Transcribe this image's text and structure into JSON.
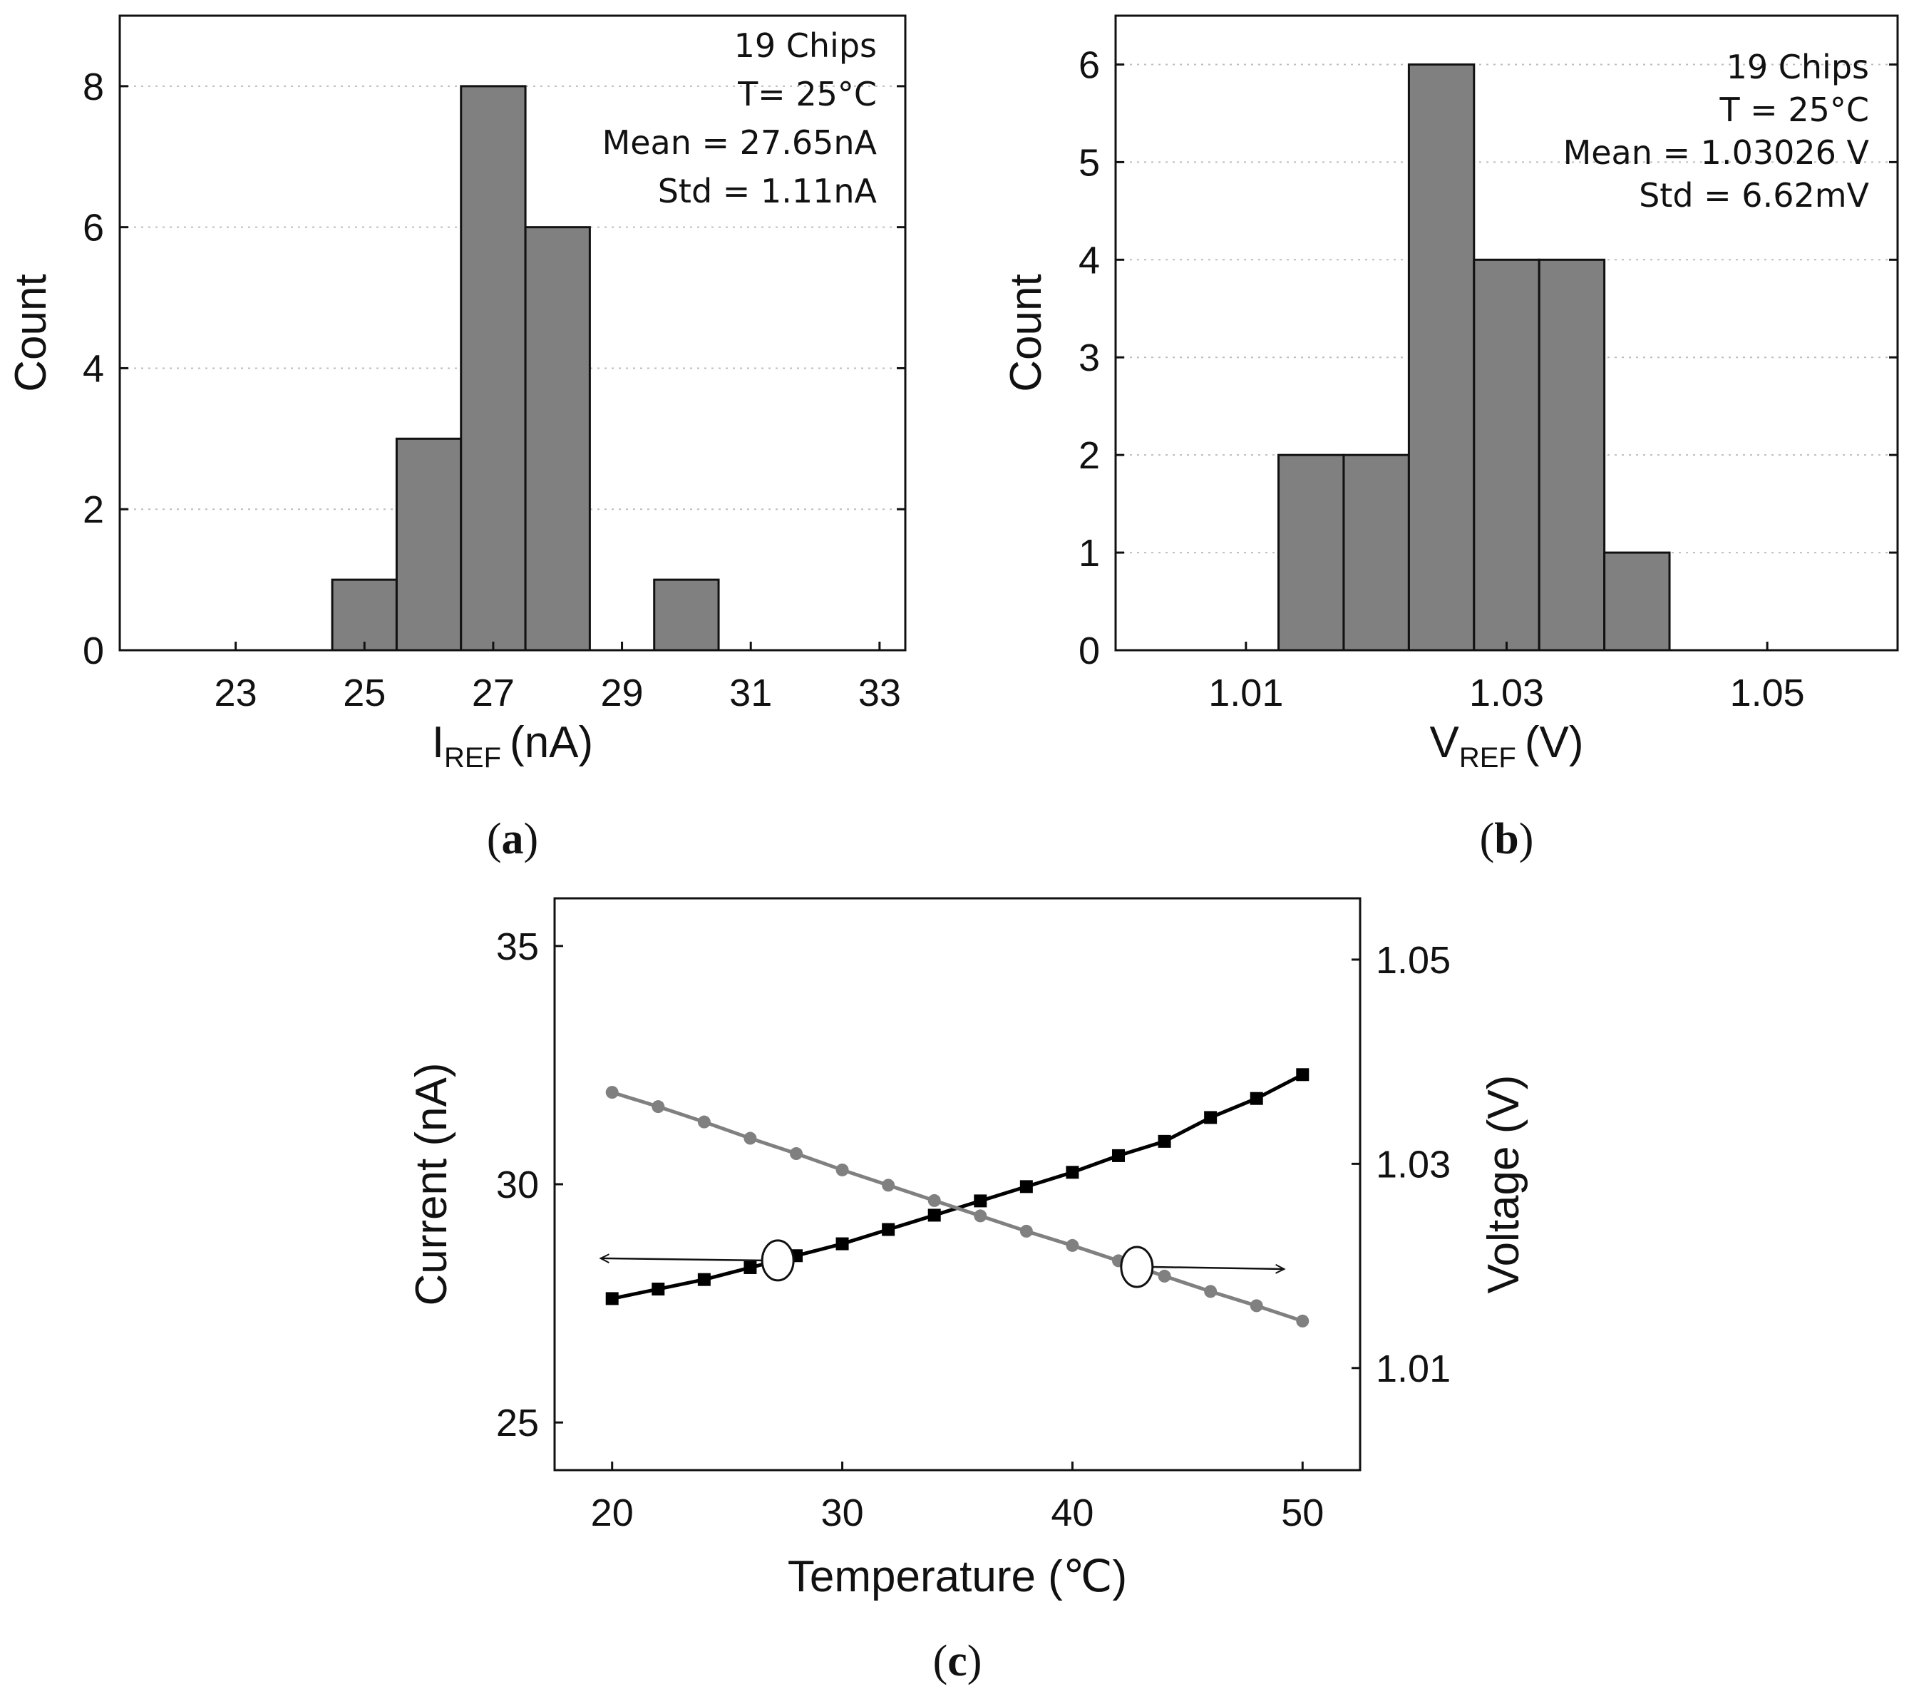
{
  "chart_data": [
    {
      "panel": "a",
      "type": "bar",
      "title": "",
      "xlabel": {
        "main": "I",
        "sub": "REF",
        "unit": "(nA)"
      },
      "ylabel": "Count",
      "xlim": [
        21.2,
        33.4
      ],
      "ylim": [
        0,
        9
      ],
      "xticks": [
        23,
        25,
        27,
        29,
        31,
        33
      ],
      "xtick_labels": [
        "23",
        "25",
        "27",
        "29",
        "31",
        "33"
      ],
      "yticks": [
        0,
        2,
        4,
        6,
        8
      ],
      "ytick_labels": [
        "0",
        "2",
        "4",
        "6",
        "8"
      ],
      "grid": true,
      "bin_width": 1,
      "bins": [
        {
          "center": 25,
          "count": 1
        },
        {
          "center": 26,
          "count": 3
        },
        {
          "center": 27,
          "count": 8
        },
        {
          "center": 28,
          "count": 6
        },
        {
          "center": 30,
          "count": 1
        }
      ],
      "annotations": [
        "19 Chips",
        "T= 25°C",
        "Mean = 27.65nA",
        "Std = 1.11nA"
      ],
      "annotation_position": "top-right",
      "bar_color": "#808080",
      "label": {
        "open": "(",
        "letter": "a",
        "close": ")"
      }
    },
    {
      "panel": "b",
      "type": "bar",
      "title": "",
      "xlabel": {
        "main": "V",
        "sub": "REF",
        "unit": "(V)"
      },
      "ylabel": "Count",
      "xlim": [
        1.0,
        1.06
      ],
      "ylim": [
        0,
        6.5
      ],
      "xticks": [
        1.01,
        1.03,
        1.05
      ],
      "xtick_labels": [
        "1.01",
        "1.03",
        "1.05"
      ],
      "yticks": [
        0,
        1,
        2,
        3,
        4,
        5,
        6
      ],
      "ytick_labels": [
        "0",
        "1",
        "2",
        "3",
        "4",
        "5",
        "6"
      ],
      "grid": true,
      "bin_width": 0.005,
      "bins": [
        {
          "center": 1.015,
          "count": 2
        },
        {
          "center": 1.02,
          "count": 2
        },
        {
          "center": 1.025,
          "count": 6
        },
        {
          "center": 1.03,
          "count": 4
        },
        {
          "center": 1.035,
          "count": 4
        },
        {
          "center": 1.04,
          "count": 1
        }
      ],
      "annotations": [
        "19 Chips",
        "T = 25°C",
        "Mean = 1.03026 V",
        "Std = 6.62mV"
      ],
      "annotation_position": "top-right",
      "bar_color": "#808080",
      "label": {
        "open": "(",
        "letter": "b",
        "close": ")"
      }
    },
    {
      "panel": "c",
      "type": "line",
      "title": "",
      "xlabel": "Temperature (℃)",
      "ylabel_left": "Current (nA)",
      "ylabel_right": "Voltage (V)",
      "xlim": [
        17.5,
        52.5
      ],
      "ylim_left": [
        24,
        36
      ],
      "ylim_right": [
        1.0,
        1.056
      ],
      "xticks": [
        20,
        30,
        40,
        50
      ],
      "xtick_labels": [
        "20",
        "30",
        "40",
        "50"
      ],
      "yticks_left": [
        25,
        30,
        35
      ],
      "ytick_labels_left": [
        "25",
        "30",
        "35"
      ],
      "yticks_right": [
        1.01,
        1.03,
        1.05
      ],
      "ytick_labels_right": [
        "1.01",
        "1.03",
        "1.05"
      ],
      "grid": false,
      "x": [
        20,
        22,
        24,
        26,
        28,
        30,
        32,
        34,
        36,
        38,
        40,
        42,
        44,
        46,
        48,
        50
      ],
      "series": [
        {
          "name": "Current",
          "axis": "left",
          "marker": "square",
          "color": "#000000",
          "values": [
            27.6,
            27.8,
            28.0,
            28.25,
            28.5,
            28.75,
            29.05,
            29.35,
            29.65,
            29.95,
            30.25,
            30.6,
            30.9,
            31.4,
            31.8,
            32.3
          ]
        },
        {
          "name": "Voltage",
          "axis": "right",
          "marker": "circle",
          "color": "#808080",
          "values": [
            1.037,
            1.0356,
            1.0341,
            1.0325,
            1.031,
            1.0294,
            1.0279,
            1.0264,
            1.0249,
            1.0234,
            1.022,
            1.0205,
            1.019,
            1.0175,
            1.0161,
            1.0146
          ]
        }
      ],
      "arrow_annotations": [
        {
          "points_to": "left-axis",
          "series": "Current",
          "at_x": 27.2,
          "arrow_to_x": 19.5
        },
        {
          "points_to": "right-axis",
          "series": "Voltage",
          "at_x": 42.8,
          "arrow_to_x": 49.2
        }
      ],
      "label": {
        "open": "(",
        "letter": "c",
        "close": ")"
      }
    }
  ]
}
